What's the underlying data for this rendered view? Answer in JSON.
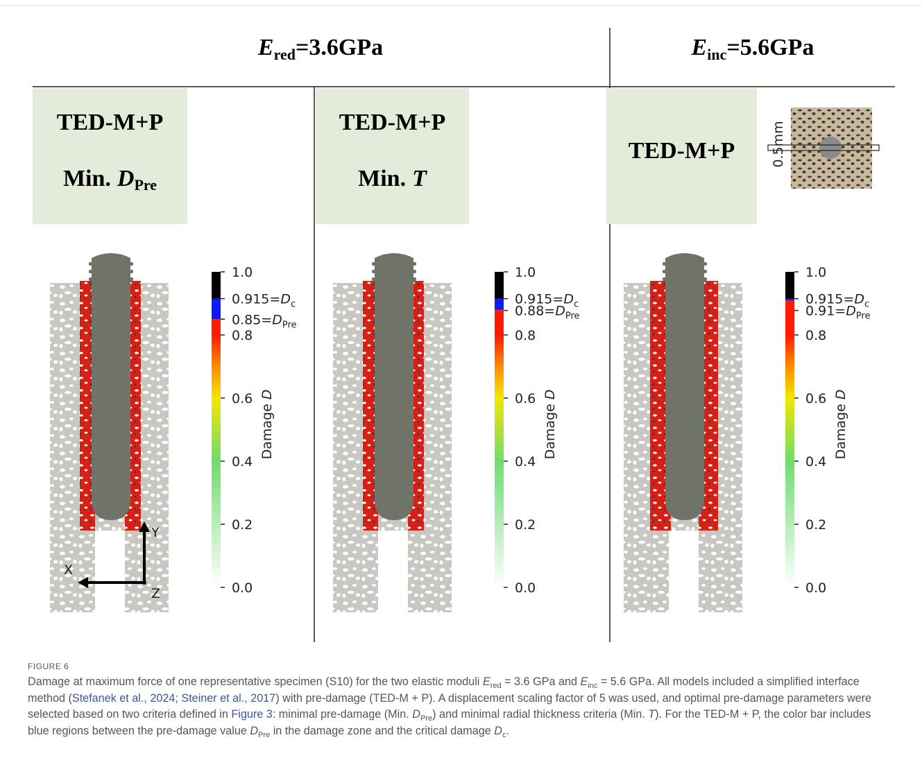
{
  "header": {
    "left": {
      "symbol": "E",
      "sub": "red",
      "value": "=3.6GPa"
    },
    "right": {
      "symbol": "E",
      "sub": "inc",
      "value": "=5.6GPa"
    }
  },
  "panels": [
    {
      "label": {
        "line1": "TED-M+P",
        "prefix": "Min.",
        "symbol": "D",
        "sub": "Pre"
      },
      "colorbar": {
        "ticks": [
          "1.0",
          "0.8",
          "0.6",
          "0.4",
          "0.2",
          "0.0"
        ],
        "critical": {
          "value": "0.915=",
          "symbol": "D",
          "sub": "c"
        },
        "pre": {
          "value": "0.85=",
          "symbol": "D",
          "sub": "Pre"
        },
        "title": "Damage",
        "title_symbol": "D"
      },
      "axes": {
        "x": "X",
        "y": "Y",
        "z": "Z"
      }
    },
    {
      "label": {
        "line1": "TED-M+P",
        "prefix": "Min.",
        "symbol": "T"
      },
      "colorbar": {
        "ticks": [
          "1.0",
          "0.8",
          "0.6",
          "0.4",
          "0.2",
          "0.0"
        ],
        "critical": {
          "value": "0.915=",
          "symbol": "D",
          "sub": "c"
        },
        "pre": {
          "value": "0.88=",
          "symbol": "D",
          "sub": "Pre"
        },
        "title": "Damage",
        "title_symbol": "D"
      }
    },
    {
      "label": {
        "line1": "TED-M+P"
      },
      "scale_bar": "0.5mm",
      "colorbar": {
        "ticks": [
          "1.0",
          "0.8",
          "0.6",
          "0.4",
          "0.2",
          "0.0"
        ],
        "critical": {
          "value": "0.915=",
          "symbol": "D",
          "sub": "c"
        },
        "pre": {
          "value": "0.91=",
          "symbol": "D",
          "sub": "Pre"
        },
        "title": "Damage",
        "title_symbol": "D"
      }
    }
  ],
  "caption": {
    "figure": "FIGURE 6",
    "segments": [
      {
        "text": "Damage at maximum force of one representative specimen (S10) for the two elastic moduli "
      },
      {
        "symbol": "E",
        "sub": "red"
      },
      {
        "text": " = 3.6 GPa and "
      },
      {
        "symbol": "E",
        "sub": "inc"
      },
      {
        "text": " = 5.6 GPa. All models included a simplified interface method ("
      },
      {
        "link": "Stefanek et al., 2024"
      },
      {
        "text": "; "
      },
      {
        "link": "Steiner et al., 2017"
      },
      {
        "text": ") with pre-damage (TED-M + P). A displacement scaling factor of 5 was used, and optimal pre-damage parameters were selected based on two criteria defined in "
      },
      {
        "link": "Figure 3"
      },
      {
        "text": ": minimal pre-damage (Min. "
      },
      {
        "symbol": "D",
        "sub": "Pre"
      },
      {
        "text": ") and minimal radial thickness criteria (Min. "
      },
      {
        "symbol": "T"
      },
      {
        "text": "). For the TED-M + P, the color bar includes blue regions between the pre-damage value "
      },
      {
        "symbol": "D",
        "sub": "Pre"
      },
      {
        "text": " in the damage zone and the critical damage "
      },
      {
        "symbol": "D",
        "sub": "c"
      },
      {
        "text": "."
      }
    ]
  }
}
